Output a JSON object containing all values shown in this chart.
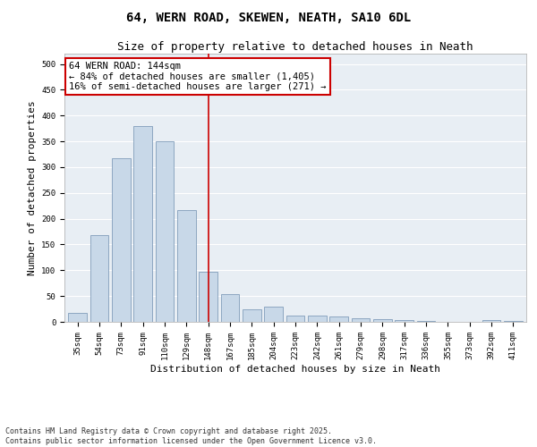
{
  "title_line1": "64, WERN ROAD, SKEWEN, NEATH, SA10 6DL",
  "title_line2": "Size of property relative to detached houses in Neath",
  "xlabel": "Distribution of detached houses by size in Neath",
  "ylabel": "Number of detached properties",
  "categories": [
    "35sqm",
    "54sqm",
    "73sqm",
    "91sqm",
    "110sqm",
    "129sqm",
    "148sqm",
    "167sqm",
    "185sqm",
    "204sqm",
    "223sqm",
    "242sqm",
    "261sqm",
    "279sqm",
    "298sqm",
    "317sqm",
    "336sqm",
    "355sqm",
    "373sqm",
    "392sqm",
    "411sqm"
  ],
  "values": [
    17,
    168,
    317,
    380,
    350,
    216,
    97,
    54,
    25,
    29,
    13,
    12,
    10,
    7,
    6,
    4,
    1,
    0,
    0,
    4,
    2
  ],
  "bar_color": "#c8d8e8",
  "bar_edge_color": "#7090b0",
  "annotation_text": "64 WERN ROAD: 144sqm\n← 84% of detached houses are smaller (1,405)\n16% of semi-detached houses are larger (271) →",
  "annotation_box_color": "#ffffff",
  "annotation_box_edge_color": "#cc0000",
  "vline_color": "#cc0000",
  "vline_x_index": 6.0,
  "ylim": [
    0,
    520
  ],
  "yticks": [
    0,
    50,
    100,
    150,
    200,
    250,
    300,
    350,
    400,
    450,
    500
  ],
  "background_color": "#e8eef4",
  "footnote": "Contains HM Land Registry data © Crown copyright and database right 2025.\nContains public sector information licensed under the Open Government Licence v3.0.",
  "title_fontsize": 10,
  "subtitle_fontsize": 9,
  "xlabel_fontsize": 8,
  "ylabel_fontsize": 8,
  "tick_fontsize": 6.5,
  "annotation_fontsize": 7.5,
  "footnote_fontsize": 6
}
